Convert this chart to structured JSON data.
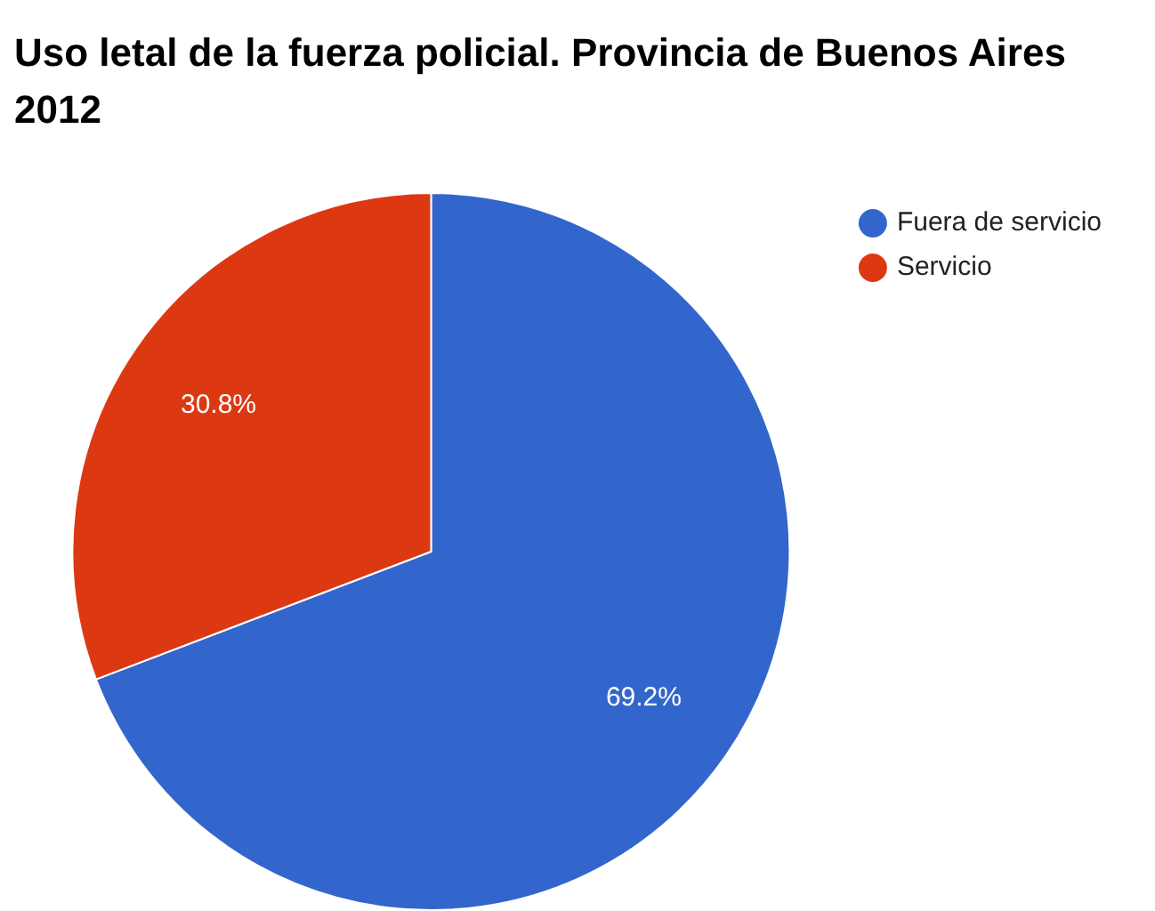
{
  "chart_data": {
    "type": "pie",
    "title": "Uso letal de la fuerza policial. Provincia de Buenos Aires 2012",
    "categories": [
      "Fuera de servicio",
      "Servicio"
    ],
    "values": [
      69.2,
      30.8
    ],
    "value_labels": [
      "69.2%",
      "30.8%"
    ],
    "colors": [
      "#3366cc",
      "#dc3912"
    ],
    "legend": "top right"
  }
}
